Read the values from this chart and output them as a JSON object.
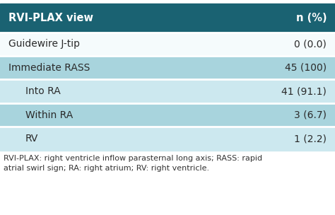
{
  "header_left": "RVI-PLAX view",
  "header_right": "n (%)",
  "header_bg": "#1a6272",
  "header_text_color": "#ffffff",
  "rows": [
    {
      "left": "Guidewire J-tip",
      "right": "0 (0.0)",
      "indent": false,
      "bg": "#f5fbfc"
    },
    {
      "left": "Immediate RASS",
      "right": "45 (100)",
      "indent": false,
      "bg": "#a8d4dd"
    },
    {
      "left": "Into RA",
      "right": "41 (91.1)",
      "indent": true,
      "bg": "#cce8ef"
    },
    {
      "left": "Within RA",
      "right": "3 (6.7)",
      "indent": true,
      "bg": "#a8d4dd"
    },
    {
      "left": "RV",
      "right": "1 (2.2)",
      "indent": true,
      "bg": "#cce8ef"
    }
  ],
  "footer_text": "RVI-PLAX: right ventricle inflow parasternal long axis; RASS: rapid\natrial swirl sign; RA: right atrium; RV: right ventricle.",
  "footer_color": "#333333",
  "fig_bg": "#ffffff",
  "separator_color": "#ffffff",
  "font_size_header": 10.5,
  "font_size_row": 10,
  "font_size_footer": 8.0
}
